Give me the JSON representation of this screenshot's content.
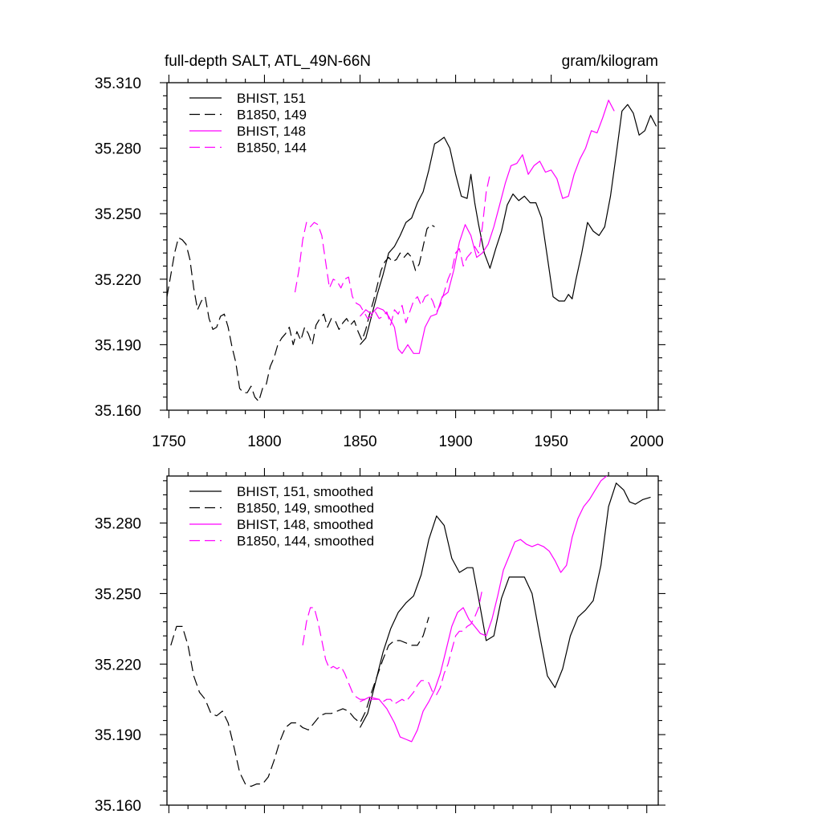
{
  "colors": {
    "black": "#000000",
    "magenta": "#ff00ff"
  },
  "chart_data": [
    {
      "type": "line",
      "title": "full-depth SALT, ATL_49N-66N",
      "units": "gram/kilogram",
      "xlim": [
        1749,
        2006
      ],
      "ylim": [
        35.16,
        35.31
      ],
      "x_ticks": [
        1750,
        1800,
        1850,
        1900,
        1950,
        2000
      ],
      "x_tick_labels": [
        "1750",
        "1800",
        "1850",
        "1900",
        "1950",
        "2000"
      ],
      "y_ticks": [
        35.16,
        35.19,
        35.22,
        35.25,
        35.28,
        35.31
      ],
      "y_tick_labels": [
        "35.160",
        "35.190",
        "35.220",
        "35.250",
        "35.280",
        "35.310"
      ],
      "legend_position": "top-left",
      "series": [
        {
          "name": "BHIST, 151",
          "color": "black",
          "dash": "solid",
          "x": [
            1850,
            1853,
            1856,
            1859,
            1862,
            1865,
            1868,
            1871,
            1874,
            1877,
            1880,
            1883,
            1886,
            1889,
            1891,
            1894,
            1897,
            1900,
            1903,
            1906,
            1908,
            1910,
            1912,
            1915,
            1918,
            1921,
            1924,
            1927,
            1930,
            1933,
            1936,
            1939,
            1942,
            1945,
            1948,
            1951,
            1954,
            1957,
            1959,
            1961,
            1963,
            1966,
            1969,
            1972,
            1975,
            1978,
            1981,
            1984,
            1987,
            1990,
            1993,
            1996,
            1999,
            2002,
            2005
          ],
          "y": [
            35.19,
            35.193,
            35.203,
            35.213,
            35.222,
            35.232,
            35.235,
            35.24,
            35.246,
            35.248,
            35.255,
            35.26,
            35.27,
            35.282,
            35.283,
            35.285,
            35.28,
            35.268,
            35.258,
            35.257,
            35.268,
            35.255,
            35.245,
            35.232,
            35.225,
            35.234,
            35.242,
            35.254,
            35.259,
            35.256,
            35.258,
            35.255,
            35.255,
            35.248,
            35.23,
            35.212,
            35.21,
            35.21,
            35.213,
            35.211,
            35.22,
            35.232,
            35.246,
            35.242,
            35.24,
            35.244,
            35.258,
            35.277,
            35.297,
            35.3,
            35.296,
            35.286,
            35.288,
            35.295,
            35.29
          ]
        },
        {
          "name": "B1850, 149",
          "color": "black",
          "dash": "dashed",
          "x": [
            1749,
            1751,
            1753,
            1755,
            1757,
            1759,
            1761,
            1763,
            1765,
            1767,
            1769,
            1771,
            1773,
            1775,
            1777,
            1779,
            1781,
            1783,
            1785,
            1787,
            1789,
            1791,
            1793,
            1795,
            1797,
            1799,
            1801,
            1803,
            1805,
            1807,
            1809,
            1811,
            1813,
            1815,
            1817,
            1819,
            1821,
            1823,
            1825,
            1827,
            1829,
            1831,
            1833,
            1835,
            1837,
            1839,
            1841,
            1843,
            1845,
            1847,
            1849,
            1851,
            1853,
            1855,
            1857,
            1859,
            1861,
            1863,
            1865,
            1867,
            1869,
            1871,
            1873,
            1875,
            1877,
            1879,
            1881,
            1883,
            1885,
            1887,
            1889
          ],
          "y": [
            35.212,
            35.222,
            35.232,
            35.239,
            35.238,
            35.236,
            35.229,
            35.216,
            35.206,
            35.21,
            35.212,
            35.202,
            35.197,
            35.198,
            35.203,
            35.204,
            35.198,
            35.189,
            35.182,
            35.17,
            35.168,
            35.168,
            35.171,
            35.166,
            35.164,
            35.17,
            35.172,
            35.18,
            35.184,
            35.19,
            35.193,
            35.195,
            35.198,
            35.19,
            35.196,
            35.192,
            35.198,
            35.195,
            35.19,
            35.199,
            35.202,
            35.204,
            35.198,
            35.202,
            35.201,
            35.197,
            35.2,
            35.202,
            35.199,
            35.201,
            35.196,
            35.192,
            35.197,
            35.204,
            35.21,
            35.217,
            35.224,
            35.228,
            35.23,
            35.228,
            35.229,
            35.232,
            35.23,
            35.232,
            35.23,
            35.224,
            35.227,
            35.235,
            35.243,
            35.245,
            35.244
          ]
        },
        {
          "name": "BHIST, 148",
          "color": "magenta",
          "dash": "solid",
          "x": [
            1850,
            1853,
            1856,
            1859,
            1862,
            1865,
            1868,
            1870,
            1872,
            1875,
            1878,
            1881,
            1884,
            1887,
            1890,
            1893,
            1896,
            1899,
            1902,
            1905,
            1908,
            1911,
            1914,
            1917,
            1920,
            1923,
            1926,
            1929,
            1932,
            1935,
            1938,
            1941,
            1944,
            1947,
            1950,
            1953,
            1956,
            1959,
            1962,
            1965,
            1968,
            1971,
            1974,
            1977,
            1980,
            1983
          ],
          "y": [
            35.203,
            35.206,
            35.204,
            35.207,
            35.206,
            35.203,
            35.198,
            35.188,
            35.186,
            35.19,
            35.186,
            35.186,
            35.198,
            35.203,
            35.204,
            35.212,
            35.214,
            35.224,
            35.237,
            35.245,
            35.24,
            35.23,
            35.232,
            35.236,
            35.244,
            35.254,
            35.264,
            35.272,
            35.273,
            35.277,
            35.268,
            35.272,
            35.274,
            35.269,
            35.27,
            35.266,
            35.257,
            35.258,
            35.268,
            35.275,
            35.28,
            35.288,
            35.287,
            35.294,
            35.302,
            35.297
          ]
        },
        {
          "name": "B1850, 144",
          "color": "magenta",
          "dash": "dashed",
          "x": [
            1816,
            1818,
            1820,
            1822,
            1824,
            1826,
            1828,
            1830,
            1832,
            1834,
            1836,
            1838,
            1840,
            1842,
            1844,
            1846,
            1848,
            1850,
            1852,
            1854,
            1856,
            1858,
            1860,
            1862,
            1864,
            1866,
            1868,
            1870,
            1872,
            1874,
            1876,
            1878,
            1880,
            1882,
            1884,
            1886,
            1888,
            1890,
            1892,
            1894,
            1896,
            1898,
            1900,
            1902,
            1904,
            1906,
            1908,
            1910,
            1912,
            1914,
            1916,
            1918
          ],
          "y": [
            35.214,
            35.224,
            35.238,
            35.246,
            35.244,
            35.246,
            35.245,
            35.24,
            35.228,
            35.216,
            35.22,
            35.219,
            35.216,
            35.22,
            35.221,
            35.212,
            35.209,
            35.208,
            35.205,
            35.202,
            35.203,
            35.205,
            35.202,
            35.203,
            35.205,
            35.199,
            35.206,
            35.204,
            35.208,
            35.2,
            35.205,
            35.21,
            35.212,
            35.208,
            35.212,
            35.213,
            35.21,
            35.205,
            35.208,
            35.214,
            35.22,
            35.224,
            35.232,
            35.234,
            35.226,
            35.23,
            35.232,
            35.235,
            35.232,
            35.244,
            35.26,
            35.268
          ]
        }
      ]
    },
    {
      "type": "line",
      "xlim": [
        1749,
        2006
      ],
      "ylim": [
        35.16,
        35.3
      ],
      "x_ticks": [
        1750,
        1800,
        1850,
        1900,
        1950,
        2000
      ],
      "y_ticks": [
        35.16,
        35.19,
        35.22,
        35.25,
        35.28
      ],
      "y_tick_labels": [
        "35.160",
        "35.190",
        "35.220",
        "35.250",
        "35.280"
      ],
      "legend_position": "top-left",
      "series": [
        {
          "name": "BHIST, 151, smoothed",
          "color": "black",
          "dash": "solid",
          "x": [
            1850,
            1854,
            1858,
            1862,
            1866,
            1870,
            1874,
            1878,
            1882,
            1886,
            1890,
            1894,
            1898,
            1902,
            1906,
            1909,
            1912,
            1916,
            1920,
            1924,
            1928,
            1932,
            1936,
            1940,
            1944,
            1948,
            1952,
            1956,
            1960,
            1964,
            1968,
            1972,
            1976,
            1980,
            1984,
            1988,
            1991,
            1994,
            1998,
            2002
          ],
          "y": [
            35.193,
            35.199,
            35.212,
            35.225,
            35.235,
            35.242,
            35.246,
            35.249,
            35.258,
            35.273,
            35.283,
            35.279,
            35.265,
            35.259,
            35.261,
            35.261,
            35.248,
            35.23,
            35.232,
            35.248,
            35.257,
            35.257,
            35.257,
            35.25,
            35.232,
            35.215,
            35.21,
            35.218,
            35.232,
            35.24,
            35.243,
            35.247,
            35.262,
            35.287,
            35.297,
            35.294,
            35.289,
            35.288,
            35.29,
            35.291
          ]
        },
        {
          "name": "B1850, 149, smoothed",
          "color": "black",
          "dash": "dashed",
          "x": [
            1751,
            1754,
            1757,
            1760,
            1763,
            1766,
            1769,
            1772,
            1775,
            1778,
            1781,
            1784,
            1787,
            1790,
            1793,
            1796,
            1799,
            1802,
            1805,
            1808,
            1811,
            1814,
            1817,
            1820,
            1823,
            1826,
            1829,
            1832,
            1835,
            1838,
            1841,
            1844,
            1847,
            1850,
            1853,
            1856,
            1859,
            1862,
            1865,
            1868,
            1871,
            1874,
            1877,
            1880,
            1883,
            1886
          ],
          "y": [
            35.228,
            35.236,
            35.236,
            35.228,
            35.215,
            35.208,
            35.205,
            35.199,
            35.198,
            35.2,
            35.195,
            35.185,
            35.174,
            35.169,
            35.168,
            35.169,
            35.169,
            35.172,
            35.179,
            35.187,
            35.193,
            35.195,
            35.195,
            35.193,
            35.192,
            35.195,
            35.198,
            35.199,
            35.199,
            35.2,
            35.201,
            35.2,
            35.197,
            35.195,
            35.2,
            35.208,
            35.215,
            35.222,
            35.228,
            35.23,
            35.23,
            35.229,
            35.228,
            35.228,
            35.232,
            35.24
          ]
        },
        {
          "name": "BHIST, 148, smoothed",
          "color": "magenta",
          "dash": "solid",
          "x": [
            1850,
            1855,
            1860,
            1864,
            1868,
            1871,
            1874,
            1877,
            1880,
            1883,
            1886,
            1889,
            1892,
            1895,
            1898,
            1901,
            1904,
            1907,
            1910,
            1913,
            1916,
            1919,
            1922,
            1925,
            1928,
            1931,
            1934,
            1937,
            1940,
            1943,
            1946,
            1949,
            1952,
            1955,
            1958,
            1961,
            1964,
            1967,
            1970,
            1973,
            1976,
            1979
          ],
          "y": [
            35.204,
            35.206,
            35.205,
            35.201,
            35.195,
            35.189,
            35.188,
            35.187,
            35.192,
            35.2,
            35.204,
            35.209,
            35.216,
            35.226,
            35.236,
            35.242,
            35.244,
            35.239,
            35.236,
            35.233,
            35.232,
            35.239,
            35.249,
            35.26,
            35.266,
            35.272,
            35.273,
            35.271,
            35.27,
            35.271,
            35.27,
            35.268,
            35.264,
            35.259,
            35.262,
            35.274,
            35.282,
            35.287,
            35.29,
            35.294,
            35.298,
            35.3
          ]
        },
        {
          "name": "B1850, 144, smoothed",
          "color": "magenta",
          "dash": "dashed",
          "x": [
            1820,
            1822,
            1824,
            1826,
            1828,
            1830,
            1832,
            1834,
            1836,
            1838,
            1840,
            1842,
            1844,
            1846,
            1848,
            1850,
            1852,
            1854,
            1856,
            1858,
            1860,
            1862,
            1864,
            1866,
            1868,
            1870,
            1872,
            1874,
            1876,
            1878,
            1880,
            1882,
            1884,
            1886,
            1888,
            1890,
            1892,
            1894,
            1896,
            1898,
            1900,
            1902,
            1904,
            1906,
            1908,
            1910,
            1912,
            1914
          ],
          "y": [
            35.228,
            35.238,
            35.244,
            35.244,
            35.238,
            35.23,
            35.222,
            35.218,
            35.219,
            35.218,
            35.219,
            35.216,
            35.212,
            35.208,
            35.206,
            35.205,
            35.205,
            35.204,
            35.205,
            35.205,
            35.205,
            35.204,
            35.205,
            35.205,
            35.203,
            35.204,
            35.205,
            35.204,
            35.206,
            35.208,
            35.211,
            35.213,
            35.213,
            35.212,
            35.208,
            35.207,
            35.21,
            35.216,
            35.22,
            35.226,
            35.232,
            35.234,
            35.234,
            35.236,
            35.237,
            35.24,
            35.244,
            35.252
          ]
        }
      ]
    }
  ]
}
